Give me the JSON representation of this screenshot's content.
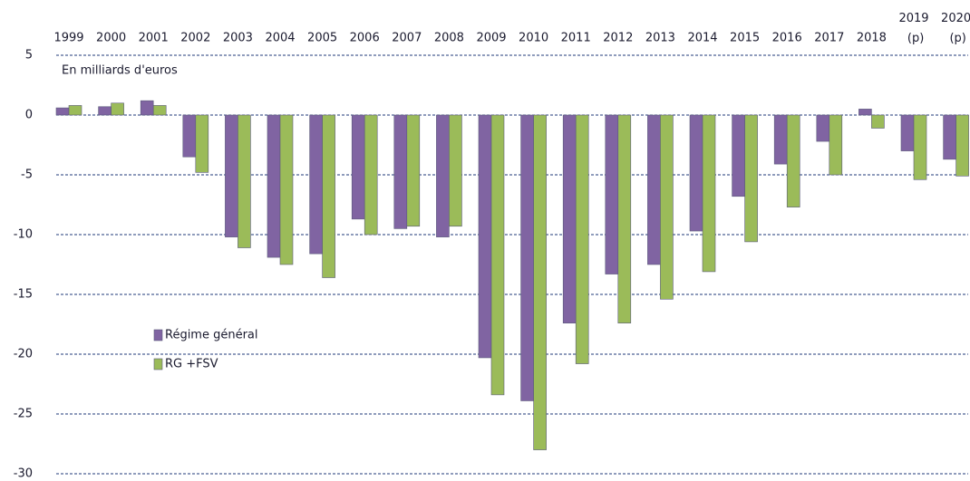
{
  "chart_data": {
    "type": "bar",
    "subtitle": "En milliards d'euros",
    "categories": [
      "1999",
      "2000",
      "2001",
      "2002",
      "2003",
      "2004",
      "2005",
      "2006",
      "2007",
      "2008",
      "2009",
      "2010",
      "2011",
      "2012",
      "2013",
      "2014",
      "2015",
      "2016",
      "2017",
      "2018",
      "2019 (p)",
      "2020 (p)"
    ],
    "series": [
      {
        "name": "Régime général",
        "color": "#8064a2",
        "values": [
          0.6,
          0.7,
          1.2,
          -3.5,
          -10.2,
          -11.9,
          -11.6,
          -8.7,
          -9.5,
          -10.2,
          -20.3,
          -23.9,
          -17.4,
          -13.3,
          -12.5,
          -9.7,
          -6.8,
          -4.1,
          -2.2,
          0.5,
          -3.0,
          -3.7
        ]
      },
      {
        "name": "RG +FSV",
        "color": "#9bbb59",
        "values": [
          0.8,
          1.0,
          0.8,
          -4.8,
          -11.1,
          -12.5,
          -13.6,
          -10.0,
          -9.3,
          -9.3,
          -23.4,
          -28.0,
          -20.8,
          -17.4,
          -15.4,
          -13.1,
          -10.6,
          -7.7,
          -5.0,
          -1.1,
          -5.4,
          -5.1
        ]
      }
    ],
    "ylim": [
      -30,
      5
    ],
    "yticks": [
      5,
      0,
      -5,
      -10,
      -15,
      -20,
      -25,
      -30
    ],
    "grid": true
  }
}
